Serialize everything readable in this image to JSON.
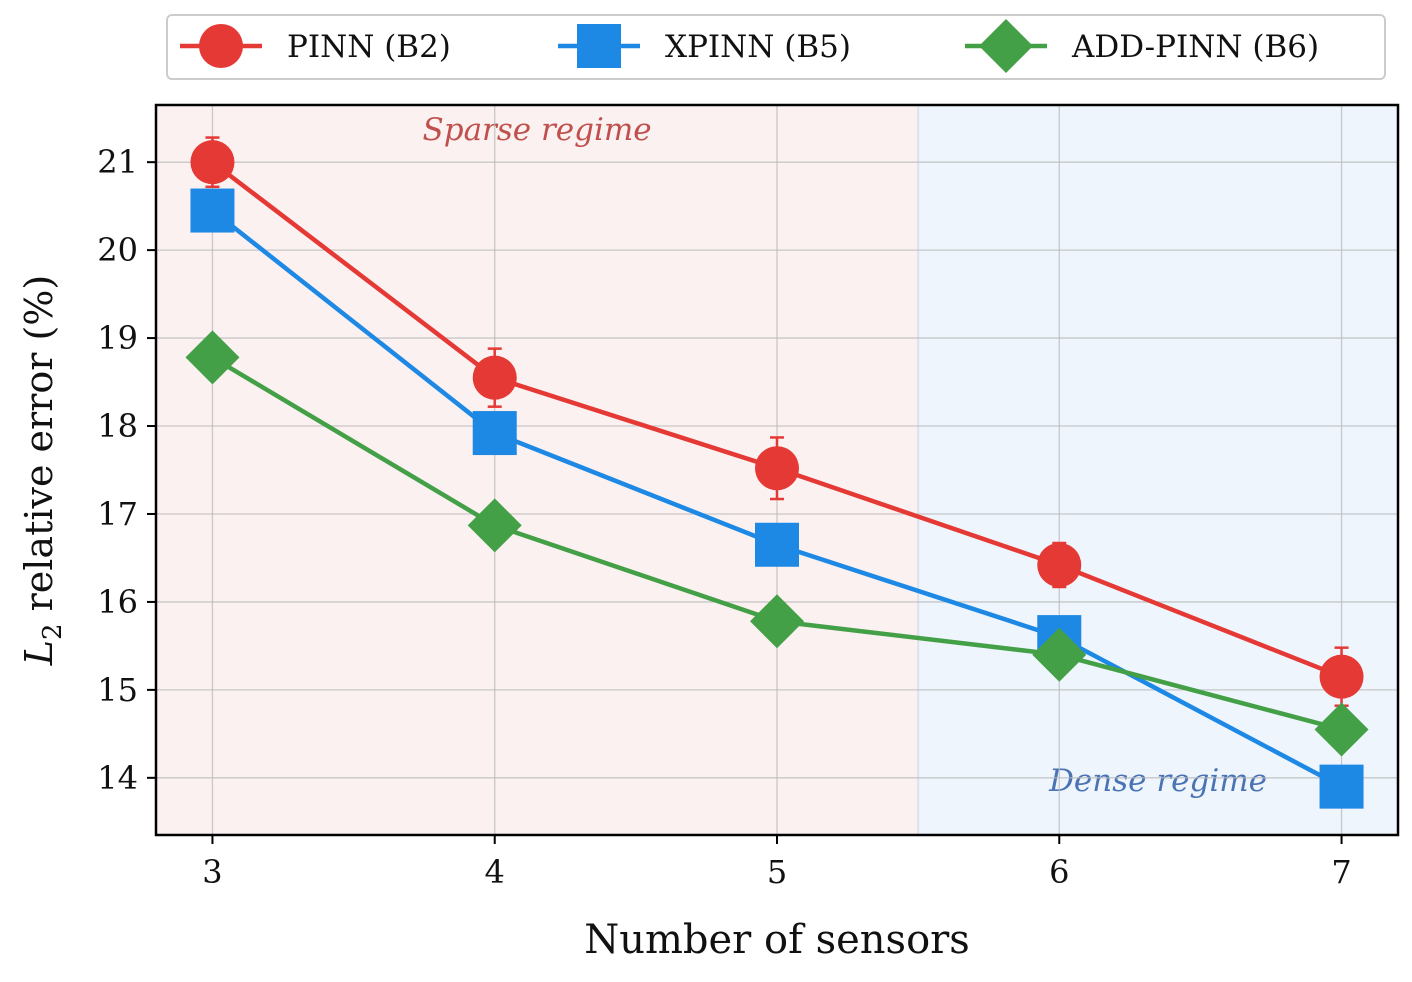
{
  "chart_data": {
    "type": "line",
    "title": "",
    "xlabel": "Number of sensors",
    "ylabel_main": "L",
    "ylabel_sub": "2",
    "ylabel_rest": " relative error (%)",
    "x": [
      3,
      4,
      5,
      6,
      7
    ],
    "xlim": [
      2.8,
      7.2
    ],
    "ylim": [
      13.35,
      21.65
    ],
    "xticks": [
      3,
      4,
      5,
      6,
      7
    ],
    "yticks": [
      14,
      15,
      16,
      17,
      18,
      19,
      20,
      21
    ],
    "grid": true,
    "legend_position": "top, outside plot",
    "regions": [
      {
        "label": "Sparse regime",
        "x_start": 2.8,
        "x_end": 5.5,
        "color": "#fbf1f1",
        "text_color": "#c0504d",
        "label_x": 4.15,
        "label_y": 21.25
      },
      {
        "label": "Dense regime",
        "x_start": 5.5,
        "x_end": 7.2,
        "color": "#eef5fc",
        "text_color": "#4a73b5",
        "label_x": 6.35,
        "label_y": 13.85
      }
    ],
    "series": [
      {
        "name": "PINN (B2)",
        "color": "#e53935",
        "marker": "circle",
        "values": [
          21.0,
          18.55,
          17.52,
          16.42,
          15.15
        ],
        "errors": [
          0.28,
          0.33,
          0.35,
          0.25,
          0.33
        ]
      },
      {
        "name": "XPINN (B5)",
        "color": "#1e88e5",
        "marker": "square",
        "values": [
          20.45,
          17.92,
          16.65,
          15.6,
          13.9
        ],
        "errors": [
          0.0,
          0.0,
          0.0,
          0.0,
          0.0
        ]
      },
      {
        "name": "ADD-PINN (B6)",
        "color": "#43a047",
        "marker": "diamond",
        "values": [
          18.78,
          16.87,
          15.78,
          15.4,
          14.55
        ],
        "errors": [
          0.0,
          0.0,
          0.0,
          0.0,
          0.0
        ]
      }
    ]
  }
}
